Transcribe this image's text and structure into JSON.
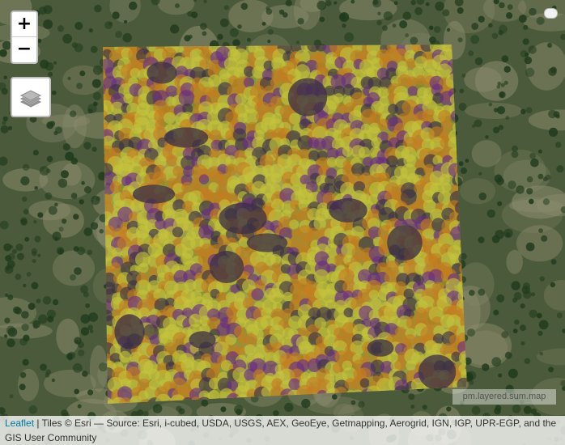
{
  "map": {
    "zoom_in_label": "+",
    "zoom_out_label": "−",
    "layers_icon": "layers-icon",
    "overlay_label": "pm.layered.sum.map",
    "colors": {
      "forest_base": "#4a5a3a",
      "tree_dark": "#1f3a1c",
      "clearing": "#8a8a6c",
      "raster_dark": "#3b2f45",
      "raster_purple": "#6a2c83",
      "raster_orange": "#c67d1f",
      "raster_yellow": "#c7c43b"
    }
  },
  "attribution": {
    "leaflet_link": "Leaflet",
    "tiles_text": " | Tiles © Esri — Source: Esri, i-cubed, USDA, USGS, AEX, GeoEye, Getmapping, Aerogrid, IGN, IGP, UPR-EGP, and the GIS User Community"
  }
}
